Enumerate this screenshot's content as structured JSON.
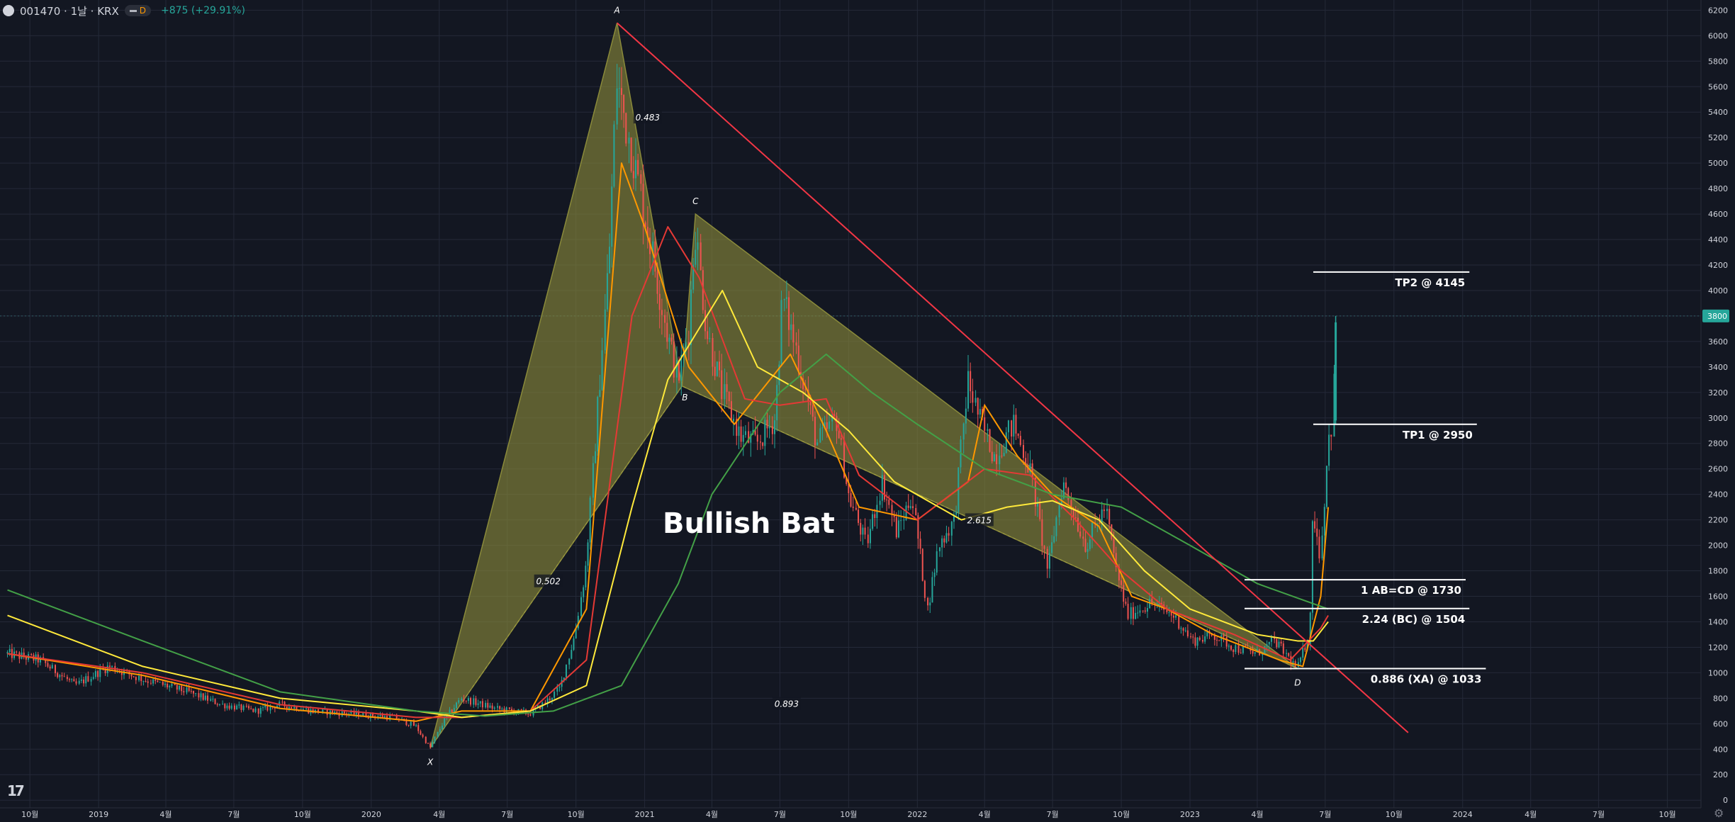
{
  "header": {
    "title": "001470 · 1날 · KRX",
    "interval": "D",
    "change": "+875 (+29.91%)"
  },
  "price_marker": "3800",
  "icons": {
    "logo": "tradingview-logo",
    "settings": "gear-icon"
  },
  "colors": {
    "background": "#131722",
    "grid": "#242938",
    "axis_text": "#d1d4dc",
    "up": "#26a69a",
    "down": "#ef5350",
    "pattern_fill": "#8a8a3a",
    "trendline": "#f23645",
    "ma_yellow": "#ffe93b",
    "ma_orange": "#ff9800",
    "ma_red": "#e53935",
    "ma_green": "#43a047"
  },
  "chart_data": {
    "type": "candlestick",
    "title": "",
    "xlabel": "",
    "ylabel": "",
    "x_ticks": [
      "10월",
      "2019",
      "4월",
      "7월",
      "10월",
      "2020",
      "4월",
      "7월",
      "10월",
      "2021",
      "4월",
      "7월",
      "10월",
      "2022",
      "4월",
      "7월",
      "10월",
      "2023",
      "4월",
      "7월",
      "10월",
      "2024",
      "4월",
      "7월",
      "10월"
    ],
    "x_tick_dates": [
      "2018-10-01",
      "2019-01-01",
      "2019-04-01",
      "2019-07-01",
      "2019-10-01",
      "2020-01-01",
      "2020-04-01",
      "2020-07-01",
      "2020-10-01",
      "2021-01-01",
      "2021-04-01",
      "2021-07-01",
      "2021-10-01",
      "2022-01-01",
      "2022-04-01",
      "2022-07-01",
      "2022-10-01",
      "2023-01-01",
      "2023-04-01",
      "2023-07-01",
      "2023-10-01",
      "2024-01-01",
      "2024-04-01",
      "2024-07-01",
      "2024-10-01"
    ],
    "y_ticks": [
      0,
      200,
      400,
      600,
      800,
      1000,
      1200,
      1400,
      1600,
      1800,
      2000,
      2200,
      2400,
      2600,
      2800,
      3000,
      3200,
      3400,
      3600,
      3800,
      4000,
      4200,
      4400,
      4600,
      4800,
      5000,
      5200,
      5400,
      5600,
      5800,
      6000,
      6200
    ],
    "ylim": [
      -60,
      6280
    ],
    "last_price": 3800,
    "price_path": [
      [
        "2018-09-01",
        1150
      ],
      [
        "2018-10-15",
        1100
      ],
      [
        "2018-12-01",
        900
      ],
      [
        "2019-01-15",
        1050
      ],
      [
        "2019-03-01",
        950
      ],
      [
        "2019-05-01",
        850
      ],
      [
        "2019-06-15",
        750
      ],
      [
        "2019-08-01",
        700
      ],
      [
        "2019-09-01",
        750
      ],
      [
        "2019-10-15",
        700
      ],
      [
        "2019-12-01",
        680
      ],
      [
        "2020-02-01",
        650
      ],
      [
        "2020-03-01",
        580
      ],
      [
        "2020-03-20",
        410
      ],
      [
        "2020-04-10",
        650
      ],
      [
        "2020-05-01",
        800
      ],
      [
        "2020-06-15",
        720
      ],
      [
        "2020-08-01",
        680
      ],
      [
        "2020-08-20",
        760
      ],
      [
        "2020-09-10",
        880
      ],
      [
        "2020-09-30",
        1300
      ],
      [
        "2020-10-15",
        1850
      ],
      [
        "2020-11-01",
        3200
      ],
      [
        "2020-11-15",
        4300
      ],
      [
        "2020-11-25",
        5650
      ],
      [
        "2020-12-15",
        5100
      ],
      [
        "2021-01-05",
        4500
      ],
      [
        "2021-02-01",
        3650
      ],
      [
        "2021-02-15",
        3300
      ],
      [
        "2021-03-01",
        3700
      ],
      [
        "2021-03-10",
        4500
      ],
      [
        "2021-03-25",
        3700
      ],
      [
        "2021-04-15",
        3200
      ],
      [
        "2021-05-10",
        2850
      ],
      [
        "2021-06-01",
        2800
      ],
      [
        "2021-06-25",
        3000
      ],
      [
        "2021-07-05",
        3950
      ],
      [
        "2021-07-25",
        3500
      ],
      [
        "2021-08-20",
        2800
      ],
      [
        "2021-09-15",
        3000
      ],
      [
        "2021-10-01",
        2400
      ],
      [
        "2021-10-25",
        2000
      ],
      [
        "2021-11-15",
        2500
      ],
      [
        "2021-12-05",
        2100
      ],
      [
        "2021-12-25",
        2400
      ],
      [
        "2022-01-15",
        1500
      ],
      [
        "2022-01-30",
        2000
      ],
      [
        "2022-02-20",
        2200
      ],
      [
        "2022-03-10",
        3300
      ],
      [
        "2022-03-25",
        3000
      ],
      [
        "2022-04-15",
        2700
      ],
      [
        "2022-05-10",
        2950
      ],
      [
        "2022-06-01",
        2600
      ],
      [
        "2022-06-25",
        1800
      ],
      [
        "2022-07-15",
        2500
      ],
      [
        "2022-08-15",
        2000
      ],
      [
        "2022-09-10",
        2300
      ],
      [
        "2022-09-25",
        1800
      ],
      [
        "2022-10-10",
        1450
      ],
      [
        "2022-11-10",
        1550
      ],
      [
        "2022-12-10",
        1450
      ],
      [
        "2023-01-05",
        1250
      ],
      [
        "2023-02-01",
        1300
      ],
      [
        "2023-03-01",
        1200
      ],
      [
        "2023-04-01",
        1150
      ],
      [
        "2023-04-25",
        1250
      ],
      [
        "2023-05-25",
        1033
      ],
      [
        "2023-06-10",
        1300
      ],
      [
        "2023-06-15",
        2300
      ],
      [
        "2023-06-25",
        1900
      ],
      [
        "2023-07-05",
        2800
      ],
      [
        "2023-07-12",
        3000
      ],
      [
        "2023-07-15",
        3800
      ]
    ],
    "pattern": {
      "name": "Bullish Bat",
      "points": [
        {
          "label": "X",
          "date": "2020-03-20",
          "price": 410
        },
        {
          "label": "A",
          "date": "2020-11-25",
          "price": 6100
        },
        {
          "label": "B",
          "date": "2021-02-20",
          "price": 3250
        },
        {
          "label": "C",
          "date": "2021-03-10",
          "price": 4600
        },
        {
          "label": "D",
          "date": "2023-05-25",
          "price": 1033
        }
      ],
      "ratios": [
        {
          "text": "0.483",
          "date": "2021-01-05",
          "price": 5350
        },
        {
          "text": "0.502",
          "date": "2020-08-25",
          "price": 1710
        },
        {
          "text": "0.893",
          "date": "2021-07-10",
          "price": 750
        },
        {
          "text": "2.615",
          "date": "2022-03-25",
          "price": 2190
        }
      ]
    },
    "levels": [
      {
        "label": "TP2 @ 4145",
        "price": 4145,
        "date_from": "2023-06-15",
        "date_to": "2024-01-10"
      },
      {
        "label": "TP1 @ 2950",
        "price": 2950,
        "date_from": "2023-06-15",
        "date_to": "2024-01-20"
      },
      {
        "label": "1 AB=CD @ 1730",
        "price": 1730,
        "date_from": "2023-03-15",
        "date_to": "2024-01-05"
      },
      {
        "label": "2.24 (BC) @ 1504",
        "price": 1504,
        "date_from": "2023-03-15",
        "date_to": "2024-01-10"
      },
      {
        "label": "0.886 (XA) @ 1033",
        "price": 1033,
        "date_from": "2023-03-15",
        "date_to": "2024-02-01"
      }
    ],
    "trendline": [
      [
        "2020-11-25",
        6100
      ],
      [
        "2023-10-20",
        530
      ]
    ],
    "moving_averages": [
      {
        "color": "#ff9800",
        "points": [
          [
            "2018-09-01",
            1150
          ],
          [
            "2019-03-01",
            980
          ],
          [
            "2019-09-01",
            720
          ],
          [
            "2020-03-01",
            620
          ],
          [
            "2020-05-01",
            700
          ],
          [
            "2020-08-01",
            700
          ],
          [
            "2020-10-15",
            1500
          ],
          [
            "2020-12-01",
            5000
          ],
          [
            "2021-01-01",
            4500
          ],
          [
            "2021-03-01",
            3400
          ],
          [
            "2021-05-01",
            2950
          ],
          [
            "2021-07-15",
            3500
          ],
          [
            "2021-09-01",
            2900
          ],
          [
            "2021-10-15",
            2300
          ],
          [
            "2022-01-01",
            2200
          ],
          [
            "2022-03-10",
            2500
          ],
          [
            "2022-04-01",
            3100
          ],
          [
            "2022-05-15",
            2700
          ],
          [
            "2022-07-01",
            2400
          ],
          [
            "2022-09-01",
            2150
          ],
          [
            "2022-10-15",
            1600
          ],
          [
            "2022-12-01",
            1500
          ],
          [
            "2023-02-01",
            1300
          ],
          [
            "2023-05-01",
            1100
          ],
          [
            "2023-06-01",
            1050
          ],
          [
            "2023-06-25",
            1600
          ],
          [
            "2023-07-05",
            2300
          ]
        ]
      },
      {
        "color": "#e53935",
        "points": [
          [
            "2018-09-01",
            1150
          ],
          [
            "2019-03-01",
            1000
          ],
          [
            "2019-09-01",
            750
          ],
          [
            "2020-03-01",
            650
          ],
          [
            "2020-05-01",
            650
          ],
          [
            "2020-08-01",
            700
          ],
          [
            "2020-10-15",
            1100
          ],
          [
            "2020-12-15",
            3800
          ],
          [
            "2021-02-01",
            4500
          ],
          [
            "2021-03-15",
            4100
          ],
          [
            "2021-05-15",
            3150
          ],
          [
            "2021-07-01",
            3100
          ],
          [
            "2021-09-01",
            3150
          ],
          [
            "2021-10-15",
            2550
          ],
          [
            "2022-01-01",
            2200
          ],
          [
            "2022-04-01",
            2600
          ],
          [
            "2022-06-01",
            2550
          ],
          [
            "2022-08-01",
            2200
          ],
          [
            "2022-10-01",
            1800
          ],
          [
            "2022-12-01",
            1500
          ],
          [
            "2023-03-01",
            1300
          ],
          [
            "2023-05-15",
            1100
          ],
          [
            "2023-06-25",
            1350
          ],
          [
            "2023-07-05",
            1450
          ]
        ]
      },
      {
        "color": "#ffe93b",
        "points": [
          [
            "2018-09-01",
            1450
          ],
          [
            "2019-03-01",
            1050
          ],
          [
            "2019-09-01",
            800
          ],
          [
            "2020-03-01",
            700
          ],
          [
            "2020-05-01",
            650
          ],
          [
            "2020-08-01",
            700
          ],
          [
            "2020-10-15",
            900
          ],
          [
            "2020-12-15",
            2300
          ],
          [
            "2021-02-01",
            3300
          ],
          [
            "2021-04-15",
            4000
          ],
          [
            "2021-06-01",
            3400
          ],
          [
            "2021-08-01",
            3200
          ],
          [
            "2021-10-01",
            2900
          ],
          [
            "2021-12-01",
            2500
          ],
          [
            "2022-03-01",
            2200
          ],
          [
            "2022-05-01",
            2300
          ],
          [
            "2022-07-01",
            2350
          ],
          [
            "2022-09-01",
            2200
          ],
          [
            "2022-11-01",
            1800
          ],
          [
            "2023-01-01",
            1500
          ],
          [
            "2023-04-01",
            1300
          ],
          [
            "2023-05-25",
            1250
          ],
          [
            "2023-06-15",
            1250
          ],
          [
            "2023-07-05",
            1400
          ]
        ]
      },
      {
        "color": "#43a047",
        "points": [
          [
            "2018-09-01",
            1650
          ],
          [
            "2019-03-01",
            1250
          ],
          [
            "2019-09-01",
            850
          ],
          [
            "2020-03-01",
            700
          ],
          [
            "2020-06-01",
            660
          ],
          [
            "2020-09-01",
            700
          ],
          [
            "2020-12-01",
            900
          ],
          [
            "2021-02-15",
            1700
          ],
          [
            "2021-04-01",
            2400
          ],
          [
            "2021-07-01",
            3200
          ],
          [
            "2021-09-01",
            3500
          ],
          [
            "2021-11-01",
            3200
          ],
          [
            "2022-01-01",
            2950
          ],
          [
            "2022-04-01",
            2600
          ],
          [
            "2022-07-01",
            2400
          ],
          [
            "2022-10-01",
            2300
          ],
          [
            "2023-01-01",
            2000
          ],
          [
            "2023-04-01",
            1700
          ],
          [
            "2023-07-05",
            1500
          ]
        ]
      }
    ]
  }
}
